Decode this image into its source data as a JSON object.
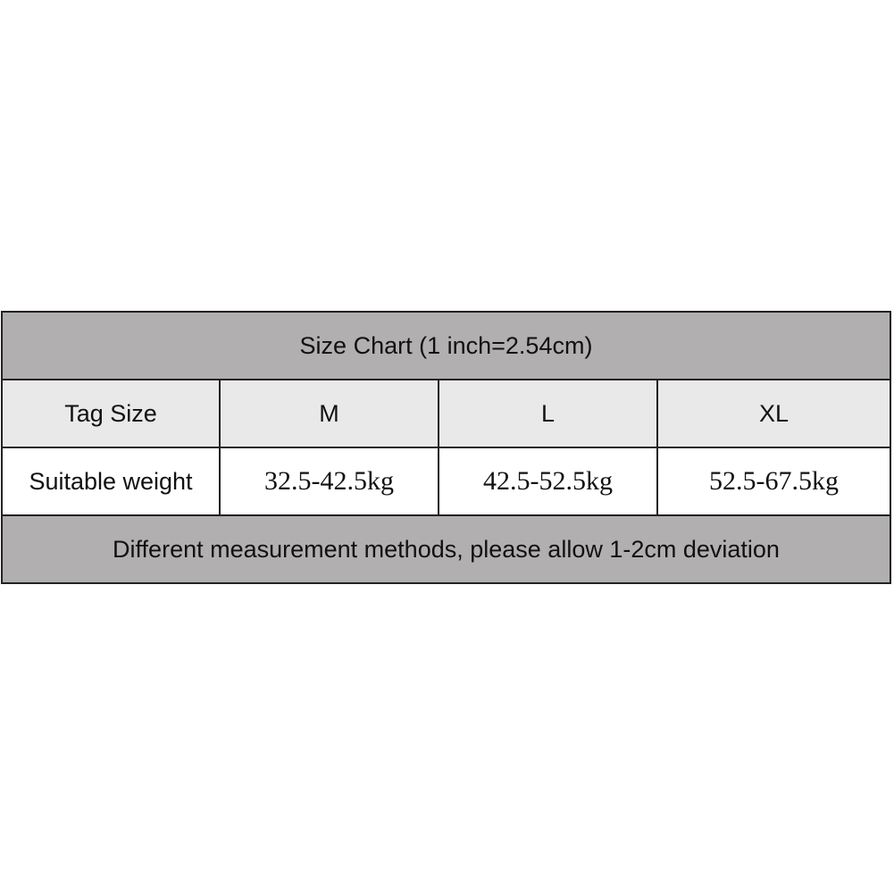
{
  "title": "Size Chart (1 inch=2.54cm)",
  "header": {
    "label": "Tag Size",
    "sizes": [
      "M",
      "L",
      "XL"
    ]
  },
  "weight_row": {
    "label": "Suitable weight",
    "values": [
      "32.5-42.5kg",
      "42.5-52.5kg",
      "52.5-67.5kg"
    ]
  },
  "footer": "Different measurement methods, please allow 1-2cm deviation",
  "colors": {
    "band": "#b1afaf",
    "header_row": "#e9e9e9",
    "border": "#222222"
  }
}
